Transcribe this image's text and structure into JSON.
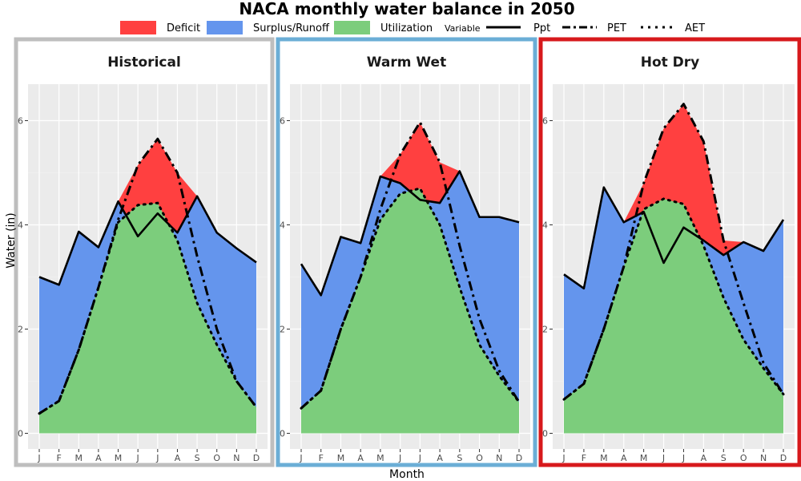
{
  "title": "NACA monthly water balance in 2050",
  "legend": {
    "fill_items": [
      {
        "label": "Deficit",
        "color": "#ff4040"
      },
      {
        "label": "Surplus/Runoff",
        "color": "#6495ed"
      },
      {
        "label": "Utilization",
        "color": "#7ccd7c"
      }
    ],
    "variable_title": "Variable",
    "line_items": [
      {
        "label": "Ppt",
        "style": "solid"
      },
      {
        "label": "PET",
        "style": "dashdot"
      },
      {
        "label": "AET",
        "style": "dotted"
      }
    ]
  },
  "axes": {
    "xlabel": "Month",
    "ylabel": "Water (in)",
    "ylim": [
      -0.3,
      6.7
    ],
    "yticks": [
      0,
      2,
      4,
      6
    ],
    "month_labels": [
      "J",
      "F",
      "M",
      "A",
      "M",
      "J",
      "J",
      "A",
      "S",
      "O",
      "N",
      "D"
    ]
  },
  "chart_data": [
    {
      "type": "area",
      "title": "Historical",
      "frame_color": "#bebebe",
      "x": [
        "J",
        "F",
        "M",
        "A",
        "M",
        "J",
        "J",
        "A",
        "S",
        "O",
        "N",
        "D"
      ],
      "series": [
        {
          "name": "Ppt",
          "values": [
            3.0,
            2.85,
            3.87,
            3.57,
            4.45,
            3.78,
            4.22,
            3.85,
            4.55,
            3.85,
            3.55,
            3.28
          ]
        },
        {
          "name": "PET",
          "values": [
            0.38,
            0.62,
            1.6,
            2.8,
            4.1,
            5.15,
            5.65,
            5.0,
            3.4,
            2.0,
            1.0,
            0.5
          ]
        },
        {
          "name": "AET",
          "values": [
            0.38,
            0.62,
            1.6,
            2.8,
            4.05,
            4.38,
            4.42,
            3.7,
            2.5,
            1.7,
            1.0,
            0.5
          ]
        }
      ]
    },
    {
      "type": "area",
      "title": "Warm Wet",
      "frame_color": "#6baed6",
      "x": [
        "J",
        "F",
        "M",
        "A",
        "M",
        "J",
        "J",
        "A",
        "S",
        "O",
        "N",
        "D"
      ],
      "series": [
        {
          "name": "Ppt",
          "values": [
            3.25,
            2.65,
            3.77,
            3.65,
            4.93,
            4.8,
            4.48,
            4.42,
            5.03,
            4.15,
            4.15,
            4.05
          ]
        },
        {
          "name": "PET",
          "values": [
            0.48,
            0.82,
            2.0,
            3.0,
            4.3,
            5.35,
            5.97,
            5.2,
            3.6,
            2.2,
            1.2,
            0.6
          ]
        },
        {
          "name": "AET",
          "values": [
            0.48,
            0.82,
            2.0,
            3.0,
            4.1,
            4.6,
            4.7,
            4.0,
            2.8,
            1.7,
            1.1,
            0.6
          ]
        }
      ]
    },
    {
      "type": "area",
      "title": "Hot Dry",
      "frame_color": "#d7191c",
      "x": [
        "J",
        "F",
        "M",
        "A",
        "M",
        "J",
        "J",
        "A",
        "S",
        "O",
        "N",
        "D"
      ],
      "series": [
        {
          "name": "Ppt",
          "values": [
            3.05,
            2.78,
            4.72,
            4.05,
            4.25,
            3.27,
            3.95,
            3.7,
            3.42,
            3.67,
            3.5,
            4.1
          ]
        },
        {
          "name": "PET",
          "values": [
            0.65,
            0.95,
            2.0,
            3.2,
            4.8,
            5.85,
            6.32,
            5.6,
            3.7,
            2.5,
            1.35,
            0.75
          ]
        },
        {
          "name": "AET",
          "values": [
            0.65,
            0.95,
            2.0,
            3.2,
            4.3,
            4.5,
            4.4,
            3.6,
            2.6,
            1.8,
            1.25,
            0.75
          ]
        }
      ]
    }
  ]
}
